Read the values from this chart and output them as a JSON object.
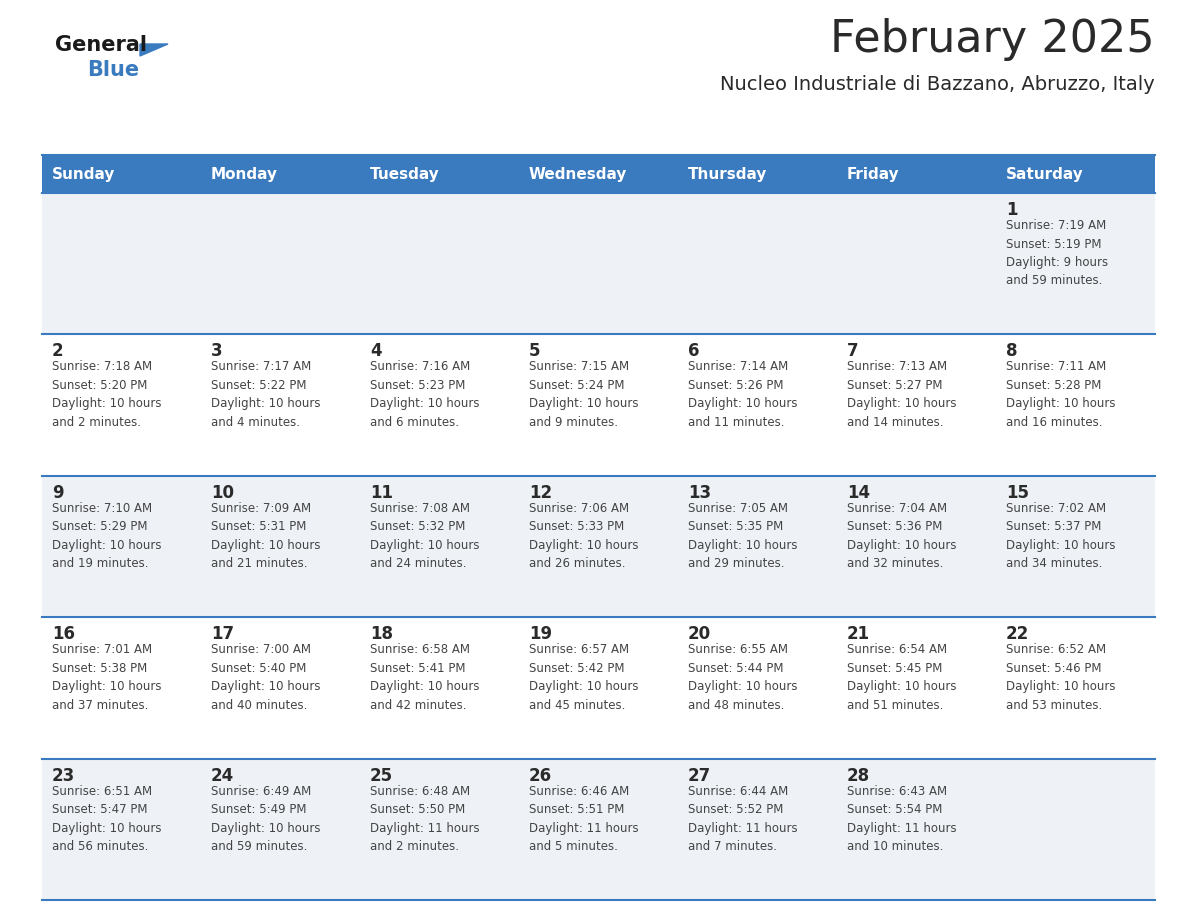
{
  "title": "February 2025",
  "subtitle": "Nucleo Industriale di Bazzano, Abruzzo, Italy",
  "header_bg": "#3a7abf",
  "header_text": "#ffffff",
  "row_bg_1": "#eef2f7",
  "row_bg_2": "#ffffff",
  "separator_color": "#3a7abf",
  "text_color": "#444444",
  "day_number_color": "#2a2a2a",
  "info_text_color": "#444444",
  "day_headers": [
    "Sunday",
    "Monday",
    "Tuesday",
    "Wednesday",
    "Thursday",
    "Friday",
    "Saturday"
  ],
  "calendar_data": [
    [
      {
        "day": "",
        "info": ""
      },
      {
        "day": "",
        "info": ""
      },
      {
        "day": "",
        "info": ""
      },
      {
        "day": "",
        "info": ""
      },
      {
        "day": "",
        "info": ""
      },
      {
        "day": "",
        "info": ""
      },
      {
        "day": "1",
        "info": "Sunrise: 7:19 AM\nSunset: 5:19 PM\nDaylight: 9 hours\nand 59 minutes."
      }
    ],
    [
      {
        "day": "2",
        "info": "Sunrise: 7:18 AM\nSunset: 5:20 PM\nDaylight: 10 hours\nand 2 minutes."
      },
      {
        "day": "3",
        "info": "Sunrise: 7:17 AM\nSunset: 5:22 PM\nDaylight: 10 hours\nand 4 minutes."
      },
      {
        "day": "4",
        "info": "Sunrise: 7:16 AM\nSunset: 5:23 PM\nDaylight: 10 hours\nand 6 minutes."
      },
      {
        "day": "5",
        "info": "Sunrise: 7:15 AM\nSunset: 5:24 PM\nDaylight: 10 hours\nand 9 minutes."
      },
      {
        "day": "6",
        "info": "Sunrise: 7:14 AM\nSunset: 5:26 PM\nDaylight: 10 hours\nand 11 minutes."
      },
      {
        "day": "7",
        "info": "Sunrise: 7:13 AM\nSunset: 5:27 PM\nDaylight: 10 hours\nand 14 minutes."
      },
      {
        "day": "8",
        "info": "Sunrise: 7:11 AM\nSunset: 5:28 PM\nDaylight: 10 hours\nand 16 minutes."
      }
    ],
    [
      {
        "day": "9",
        "info": "Sunrise: 7:10 AM\nSunset: 5:29 PM\nDaylight: 10 hours\nand 19 minutes."
      },
      {
        "day": "10",
        "info": "Sunrise: 7:09 AM\nSunset: 5:31 PM\nDaylight: 10 hours\nand 21 minutes."
      },
      {
        "day": "11",
        "info": "Sunrise: 7:08 AM\nSunset: 5:32 PM\nDaylight: 10 hours\nand 24 minutes."
      },
      {
        "day": "12",
        "info": "Sunrise: 7:06 AM\nSunset: 5:33 PM\nDaylight: 10 hours\nand 26 minutes."
      },
      {
        "day": "13",
        "info": "Sunrise: 7:05 AM\nSunset: 5:35 PM\nDaylight: 10 hours\nand 29 minutes."
      },
      {
        "day": "14",
        "info": "Sunrise: 7:04 AM\nSunset: 5:36 PM\nDaylight: 10 hours\nand 32 minutes."
      },
      {
        "day": "15",
        "info": "Sunrise: 7:02 AM\nSunset: 5:37 PM\nDaylight: 10 hours\nand 34 minutes."
      }
    ],
    [
      {
        "day": "16",
        "info": "Sunrise: 7:01 AM\nSunset: 5:38 PM\nDaylight: 10 hours\nand 37 minutes."
      },
      {
        "day": "17",
        "info": "Sunrise: 7:00 AM\nSunset: 5:40 PM\nDaylight: 10 hours\nand 40 minutes."
      },
      {
        "day": "18",
        "info": "Sunrise: 6:58 AM\nSunset: 5:41 PM\nDaylight: 10 hours\nand 42 minutes."
      },
      {
        "day": "19",
        "info": "Sunrise: 6:57 AM\nSunset: 5:42 PM\nDaylight: 10 hours\nand 45 minutes."
      },
      {
        "day": "20",
        "info": "Sunrise: 6:55 AM\nSunset: 5:44 PM\nDaylight: 10 hours\nand 48 minutes."
      },
      {
        "day": "21",
        "info": "Sunrise: 6:54 AM\nSunset: 5:45 PM\nDaylight: 10 hours\nand 51 minutes."
      },
      {
        "day": "22",
        "info": "Sunrise: 6:52 AM\nSunset: 5:46 PM\nDaylight: 10 hours\nand 53 minutes."
      }
    ],
    [
      {
        "day": "23",
        "info": "Sunrise: 6:51 AM\nSunset: 5:47 PM\nDaylight: 10 hours\nand 56 minutes."
      },
      {
        "day": "24",
        "info": "Sunrise: 6:49 AM\nSunset: 5:49 PM\nDaylight: 10 hours\nand 59 minutes."
      },
      {
        "day": "25",
        "info": "Sunrise: 6:48 AM\nSunset: 5:50 PM\nDaylight: 11 hours\nand 2 minutes."
      },
      {
        "day": "26",
        "info": "Sunrise: 6:46 AM\nSunset: 5:51 PM\nDaylight: 11 hours\nand 5 minutes."
      },
      {
        "day": "27",
        "info": "Sunrise: 6:44 AM\nSunset: 5:52 PM\nDaylight: 11 hours\nand 7 minutes."
      },
      {
        "day": "28",
        "info": "Sunrise: 6:43 AM\nSunset: 5:54 PM\nDaylight: 11 hours\nand 10 minutes."
      },
      {
        "day": "",
        "info": ""
      }
    ]
  ]
}
